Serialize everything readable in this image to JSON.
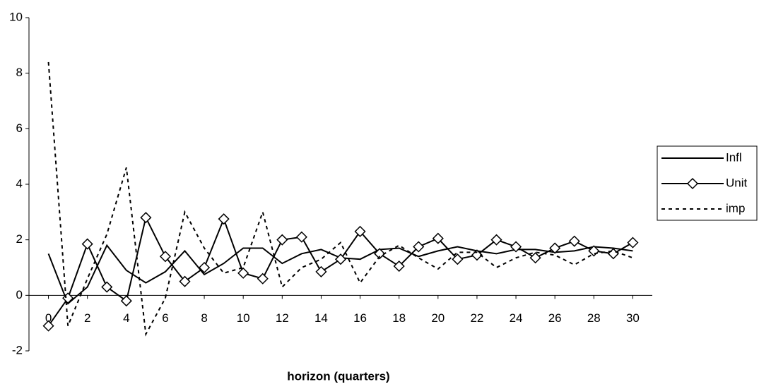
{
  "chart_data": {
    "type": "line",
    "x_label": "horizon (quarters)",
    "x": [
      0,
      1,
      2,
      3,
      4,
      5,
      6,
      7,
      8,
      9,
      10,
      11,
      12,
      13,
      14,
      15,
      16,
      17,
      18,
      19,
      20,
      21,
      22,
      23,
      24,
      25,
      26,
      27,
      28,
      29,
      30
    ],
    "xlim": [
      -1,
      31
    ],
    "xticks": [
      0,
      2,
      4,
      6,
      8,
      10,
      12,
      14,
      16,
      18,
      20,
      22,
      24,
      26,
      28,
      30
    ],
    "ylim": [
      -2,
      10
    ],
    "yticks": [
      -2,
      0,
      2,
      4,
      6,
      8,
      10
    ],
    "grid": false,
    "legend": "right",
    "series": [
      {
        "name": "Infl",
        "color": "#000000",
        "style": "solid",
        "marker": "none",
        "values": [
          1.5,
          -0.3,
          0.3,
          1.8,
          0.9,
          0.45,
          0.85,
          1.6,
          0.75,
          1.15,
          1.7,
          1.7,
          1.15,
          1.5,
          1.65,
          1.35,
          1.3,
          1.65,
          1.7,
          1.4,
          1.6,
          1.75,
          1.6,
          1.5,
          1.65,
          1.65,
          1.55,
          1.6,
          1.75,
          1.7,
          1.6
        ]
      },
      {
        "name": "Unit",
        "color": "#000000",
        "style": "solid",
        "marker": "diamond",
        "values": [
          -1.1,
          -0.1,
          1.85,
          0.3,
          -0.2,
          2.8,
          1.4,
          0.5,
          1.0,
          2.75,
          0.8,
          0.6,
          2.0,
          2.1,
          0.85,
          1.3,
          2.3,
          1.5,
          1.05,
          1.75,
          2.05,
          1.3,
          1.45,
          2.0,
          1.75,
          1.35,
          1.7,
          1.95,
          1.6,
          1.5,
          1.9
        ]
      },
      {
        "name": "imp",
        "color": "#000000",
        "style": "dashed",
        "marker": "none",
        "values": [
          8.4,
          -1.1,
          0.6,
          2.2,
          4.6,
          -1.4,
          -0.1,
          3.0,
          1.7,
          0.8,
          1.0,
          3.0,
          0.3,
          1.0,
          1.3,
          1.9,
          0.45,
          1.4,
          1.8,
          1.35,
          0.95,
          1.55,
          1.55,
          1.0,
          1.35,
          1.55,
          1.45,
          1.1,
          1.5,
          1.6,
          1.35
        ]
      }
    ]
  }
}
